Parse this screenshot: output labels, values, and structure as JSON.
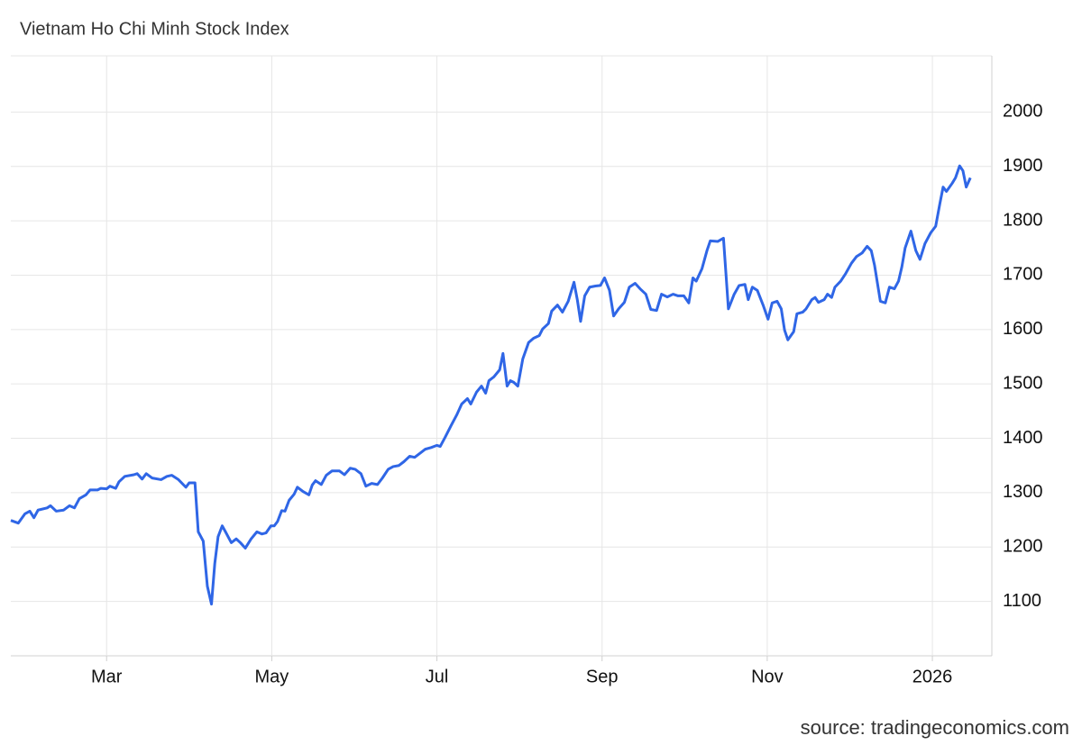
{
  "chart_data": {
    "type": "line",
    "title": "Vietnam Ho Chi Minh Stock Index",
    "source": "source: tradingeconomics.com",
    "grid": true,
    "xlim": [
      0.84,
      12.72
    ],
    "xticks": [
      {
        "value": 2,
        "label": "Mar"
      },
      {
        "value": 4,
        "label": "May"
      },
      {
        "value": 6,
        "label": "Jul"
      },
      {
        "value": 8,
        "label": "Sep"
      },
      {
        "value": 10,
        "label": "Nov"
      },
      {
        "value": 12,
        "label": "2026"
      }
    ],
    "ylim": [
      1000,
      2100
    ],
    "yticks": [
      1100,
      1200,
      1300,
      1400,
      1500,
      1600,
      1700,
      1800,
      1900,
      2000
    ],
    "x": [
      0.84,
      0.93,
      1.01,
      1.07,
      1.12,
      1.17,
      1.28,
      1.32,
      1.39,
      1.48,
      1.55,
      1.61,
      1.67,
      1.75,
      1.8,
      1.89,
      1.93,
      2.0,
      2.04,
      2.11,
      2.15,
      2.22,
      2.33,
      2.37,
      2.43,
      2.48,
      2.55,
      2.66,
      2.73,
      2.79,
      2.87,
      2.96,
      3.0,
      3.07,
      3.11,
      3.17,
      3.22,
      3.27,
      3.31,
      3.35,
      3.4,
      3.44,
      3.51,
      3.57,
      3.62,
      3.68,
      3.75,
      3.82,
      3.88,
      3.93,
      3.99,
      4.03,
      4.07,
      4.12,
      4.16,
      4.21,
      4.27,
      4.31,
      4.38,
      4.45,
      4.49,
      4.53,
      4.6,
      4.66,
      4.73,
      4.82,
      4.88,
      4.95,
      5.01,
      5.08,
      5.14,
      5.21,
      5.28,
      5.34,
      5.41,
      5.47,
      5.54,
      5.6,
      5.67,
      5.73,
      5.8,
      5.86,
      5.93,
      6.0,
      6.04,
      6.1,
      6.17,
      6.24,
      6.3,
      6.37,
      6.41,
      6.48,
      6.54,
      6.59,
      6.63,
      6.69,
      6.76,
      6.8,
      6.85,
      6.89,
      6.93,
      6.98,
      7.04,
      7.11,
      7.17,
      7.24,
      7.28,
      7.35,
      7.39,
      7.46,
      7.52,
      7.59,
      7.66,
      7.7,
      7.74,
      7.79,
      7.85,
      7.92,
      7.98,
      8.03,
      8.09,
      8.14,
      8.2,
      8.27,
      8.33,
      8.4,
      8.46,
      8.53,
      8.59,
      8.66,
      8.72,
      8.79,
      8.86,
      8.92,
      8.99,
      9.05,
      9.1,
      9.14,
      9.21,
      9.27,
      9.31,
      9.4,
      9.47,
      9.53,
      9.6,
      9.66,
      9.73,
      9.77,
      9.82,
      9.88,
      9.95,
      10.01,
      10.06,
      10.12,
      10.17,
      10.21,
      10.25,
      10.32,
      10.36,
      10.43,
      10.47,
      10.54,
      10.58,
      10.62,
      10.69,
      10.73,
      10.78,
      10.82,
      10.89,
      10.95,
      11.02,
      11.08,
      11.15,
      11.21,
      11.26,
      11.3,
      11.37,
      11.43,
      11.48,
      11.54,
      11.59,
      11.63,
      11.67,
      11.74,
      11.8,
      11.85,
      11.91,
      11.98,
      12.04,
      12.09,
      12.13,
      12.17,
      12.24,
      12.28,
      12.33,
      12.37,
      12.41,
      12.46
    ],
    "series": [
      {
        "name": "Vietnam Ho Chi Minh Stock Index",
        "color": "#2f66e6",
        "values": [
          1249,
          1244,
          1261,
          1266,
          1254,
          1268,
          1272,
          1276,
          1266,
          1268,
          1276,
          1272,
          1289,
          1296,
          1305,
          1305,
          1308,
          1307,
          1312,
          1308,
          1320,
          1330,
          1333,
          1335,
          1325,
          1335,
          1327,
          1324,
          1330,
          1332,
          1324,
          1310,
          1318,
          1318,
          1228,
          1211,
          1128,
          1095,
          1170,
          1219,
          1239,
          1228,
          1208,
          1215,
          1208,
          1198,
          1215,
          1228,
          1224,
          1226,
          1239,
          1239,
          1247,
          1267,
          1266,
          1286,
          1297,
          1310,
          1302,
          1296,
          1314,
          1322,
          1315,
          1332,
          1340,
          1340,
          1333,
          1345,
          1343,
          1335,
          1312,
          1317,
          1315,
          1327,
          1343,
          1348,
          1350,
          1357,
          1367,
          1365,
          1373,
          1380,
          1383,
          1387,
          1385,
          1402,
          1423,
          1443,
          1463,
          1473,
          1463,
          1485,
          1496,
          1483,
          1506,
          1513,
          1526,
          1556,
          1496,
          1506,
          1503,
          1496,
          1546,
          1576,
          1584,
          1589,
          1601,
          1611,
          1634,
          1645,
          1632,
          1652,
          1687,
          1655,
          1615,
          1662,
          1678,
          1680,
          1681,
          1695,
          1672,
          1625,
          1638,
          1650,
          1678,
          1685,
          1675,
          1665,
          1637,
          1635,
          1665,
          1660,
          1665,
          1662,
          1662,
          1649,
          1695,
          1689,
          1712,
          1745,
          1763,
          1762,
          1768,
          1638,
          1665,
          1681,
          1683,
          1655,
          1678,
          1672,
          1645,
          1619,
          1649,
          1652,
          1638,
          1599,
          1581,
          1596,
          1629,
          1632,
          1638,
          1655,
          1659,
          1650,
          1655,
          1665,
          1659,
          1678,
          1689,
          1703,
          1722,
          1734,
          1741,
          1753,
          1745,
          1718,
          1652,
          1649,
          1678,
          1675,
          1689,
          1715,
          1750,
          1781,
          1745,
          1729,
          1758,
          1778,
          1790,
          1831,
          1862,
          1854,
          1869,
          1879,
          1901,
          1892,
          1862,
          1879
        ]
      }
    ]
  }
}
